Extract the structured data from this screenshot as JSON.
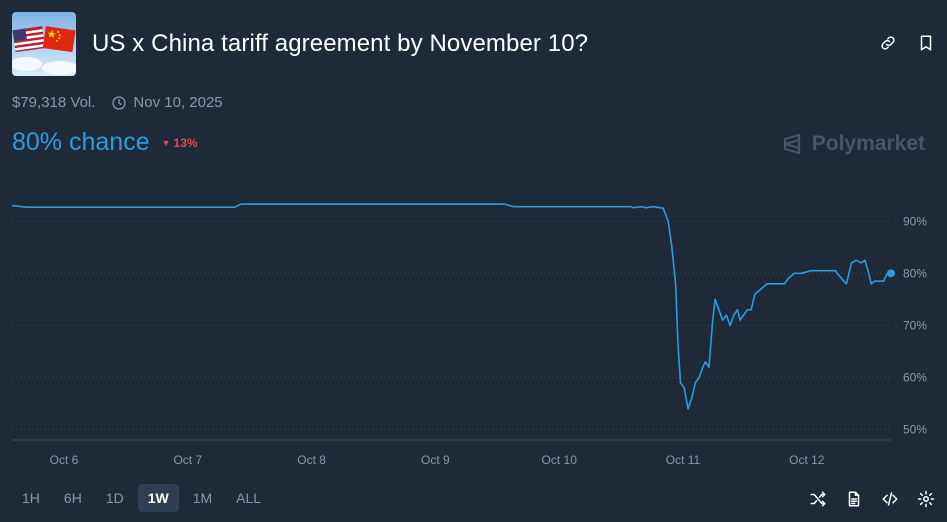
{
  "header": {
    "title": "US x China tariff agreement by November 10?",
    "thumbnail_icon": "us-china-flags-icon",
    "actions": [
      {
        "name": "link-icon"
      },
      {
        "name": "bookmark-icon"
      }
    ]
  },
  "meta": {
    "volume": "$79,318 Vol.",
    "end_date": "Nov 10, 2025",
    "clock_icon": "clock-icon"
  },
  "chance": {
    "label": "80% chance",
    "delta": "13%",
    "delta_direction": "down",
    "accent": "#2d9cdb",
    "delta_color": "#e5484d"
  },
  "brand": {
    "name": "Polymarket"
  },
  "chart_data": {
    "type": "line",
    "series": [
      {
        "color": "#2d9cdb",
        "points": [
          [
            0,
            93
          ],
          [
            0.12,
            92.7
          ],
          [
            1.0,
            92.7
          ],
          [
            1.8,
            92.7
          ],
          [
            1.85,
            93.3
          ],
          [
            2.5,
            93.3
          ],
          [
            3.2,
            93.3
          ],
          [
            3.8,
            93.3
          ],
          [
            3.98,
            93.3
          ],
          [
            4.05,
            92.8
          ],
          [
            4.6,
            92.8
          ],
          [
            5.0,
            92.8
          ],
          [
            5.02,
            92.6
          ],
          [
            5.08,
            92.8
          ],
          [
            5.12,
            92.6
          ],
          [
            5.18,
            92.8
          ],
          [
            5.26,
            92.5
          ],
          [
            5.3,
            90
          ],
          [
            5.33,
            85
          ],
          [
            5.36,
            78
          ],
          [
            5.38,
            66
          ],
          [
            5.4,
            59
          ],
          [
            5.43,
            58
          ],
          [
            5.46,
            54
          ],
          [
            5.49,
            56
          ],
          [
            5.52,
            59
          ],
          [
            5.55,
            60
          ],
          [
            5.58,
            62
          ],
          [
            5.6,
            63
          ],
          [
            5.63,
            62
          ],
          [
            5.66,
            71
          ],
          [
            5.68,
            75
          ],
          [
            5.71,
            73
          ],
          [
            5.74,
            71
          ],
          [
            5.77,
            72
          ],
          [
            5.8,
            70
          ],
          [
            5.83,
            72
          ],
          [
            5.86,
            73
          ],
          [
            5.88,
            71
          ],
          [
            5.91,
            72
          ],
          [
            5.94,
            73
          ],
          [
            5.97,
            73
          ],
          [
            6.0,
            76
          ],
          [
            6.05,
            77
          ],
          [
            6.1,
            78
          ],
          [
            6.15,
            78
          ],
          [
            6.2,
            78
          ],
          [
            6.24,
            78
          ],
          [
            6.27,
            79
          ],
          [
            6.32,
            80
          ],
          [
            6.38,
            80
          ],
          [
            6.45,
            80.5
          ],
          [
            6.55,
            80.5
          ],
          [
            6.65,
            80.5
          ],
          [
            6.7,
            79
          ],
          [
            6.74,
            78
          ],
          [
            6.78,
            82
          ],
          [
            6.82,
            82.5
          ],
          [
            6.86,
            82
          ],
          [
            6.89,
            82.5
          ],
          [
            6.92,
            80
          ],
          [
            6.94,
            78
          ],
          [
            6.97,
            78.5
          ],
          [
            7.0,
            78.5
          ],
          [
            7.04,
            78.5
          ],
          [
            7.07,
            80
          ],
          [
            7.1,
            80
          ]
        ]
      }
    ],
    "x_ticks": [
      {
        "label": "Oct 6",
        "value": 0.42
      },
      {
        "label": "Oct 7",
        "value": 1.42
      },
      {
        "label": "Oct 8",
        "value": 2.42
      },
      {
        "label": "Oct 9",
        "value": 3.42
      },
      {
        "label": "Oct 10",
        "value": 4.42
      },
      {
        "label": "Oct 11",
        "value": 5.42
      },
      {
        "label": "Oct 12",
        "value": 6.42
      }
    ],
    "y_ticks": [
      {
        "label": "90%",
        "value": 90
      },
      {
        "label": "80%",
        "value": 80
      },
      {
        "label": "70%",
        "value": 70
      },
      {
        "label": "60%",
        "value": 60
      },
      {
        "label": "50%",
        "value": 50
      }
    ],
    "xlim": [
      0,
      7.1
    ],
    "ylim": [
      48,
      96
    ],
    "grid": "horizontal dotted",
    "current_value": 80
  },
  "footer": {
    "ranges": [
      {
        "label": "1H",
        "active": false
      },
      {
        "label": "6H",
        "active": false
      },
      {
        "label": "1D",
        "active": false
      },
      {
        "label": "1W",
        "active": true
      },
      {
        "label": "1M",
        "active": false
      },
      {
        "label": "ALL",
        "active": false
      }
    ],
    "tools": [
      {
        "name": "shuffle-icon"
      },
      {
        "name": "document-icon"
      },
      {
        "name": "code-icon"
      },
      {
        "name": "gear-icon"
      }
    ]
  }
}
